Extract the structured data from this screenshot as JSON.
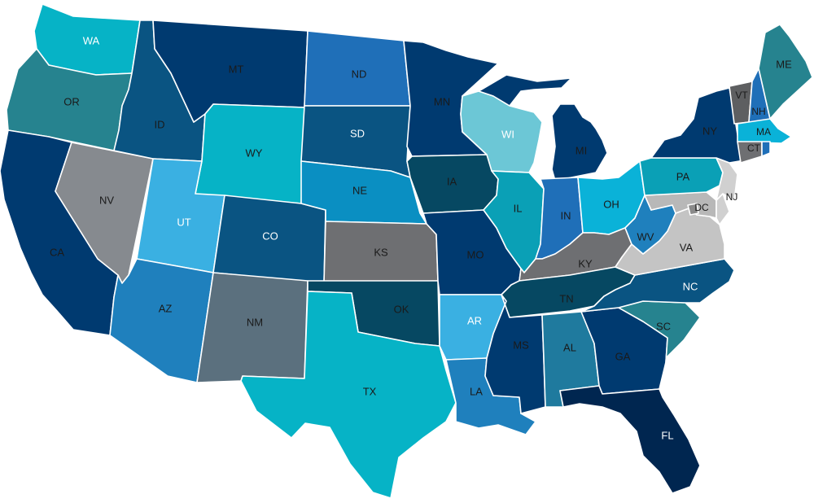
{
  "map": {
    "states": {
      "WA": {
        "label": "WA",
        "color": "#06b3c6",
        "text_color": "#ffffff"
      },
      "OR": {
        "label": "OR",
        "color": "#26838f",
        "text_color": "#1a1a1a"
      },
      "CA": {
        "label": "CA",
        "color": "#003a70",
        "text_color": "#1a1a1a"
      },
      "ID": {
        "label": "ID",
        "color": "#0a5482",
        "text_color": "#1a1a1a"
      },
      "NV": {
        "label": "NV",
        "color": "#868a8f",
        "text_color": "#1a1a1a"
      },
      "MT": {
        "label": "MT",
        "color": "#003a70",
        "text_color": "#1a1a1a"
      },
      "WY": {
        "label": "WY",
        "color": "#06b3c6",
        "text_color": "#1a1a1a"
      },
      "UT": {
        "label": "UT",
        "color": "#3ab0e2",
        "text_color": "#ffffff"
      },
      "AZ": {
        "label": "AZ",
        "color": "#1f80bd",
        "text_color": "#1a1a1a"
      },
      "CO": {
        "label": "CO",
        "color": "#0a5482",
        "text_color": "#ffffff"
      },
      "NM": {
        "label": "NM",
        "color": "#5b707e",
        "text_color": "#1a1a1a"
      },
      "ND": {
        "label": "ND",
        "color": "#1f6fb8",
        "text_color": "#1a1a1a"
      },
      "SD": {
        "label": "SD",
        "color": "#0a5482",
        "text_color": "#ffffff"
      },
      "NE": {
        "label": "NE",
        "color": "#0a8fc2",
        "text_color": "#1a1a1a"
      },
      "KS": {
        "label": "KS",
        "color": "#6e6f72",
        "text_color": "#1a1a1a"
      },
      "OK": {
        "label": "OK",
        "color": "#064862",
        "text_color": "#1a1a1a"
      },
      "TX": {
        "label": "TX",
        "color": "#06b3c6",
        "text_color": "#1a1a1a"
      },
      "MN": {
        "label": "MN",
        "color": "#003a70",
        "text_color": "#1a1a1a"
      },
      "IA": {
        "label": "IA",
        "color": "#064862",
        "text_color": "#1a1a1a"
      },
      "MO": {
        "label": "MO",
        "color": "#003a70",
        "text_color": "#1a1a1a"
      },
      "AR": {
        "label": "AR",
        "color": "#3ab0e2",
        "text_color": "#ffffff"
      },
      "LA": {
        "label": "LA",
        "color": "#1f80bd",
        "text_color": "#1a1a1a"
      },
      "WI": {
        "label": "WI",
        "color": "#6cc7d6",
        "text_color": "#ffffff"
      },
      "IL": {
        "label": "IL",
        "color": "#0aa0b6",
        "text_color": "#1a1a1a"
      },
      "MI": {
        "label": "MI",
        "color": "#003a70",
        "text_color": "#1a1a1a"
      },
      "IN": {
        "label": "IN",
        "color": "#1f6fb8",
        "text_color": "#1a1a1a"
      },
      "OH": {
        "label": "OH",
        "color": "#0ab2d8",
        "text_color": "#1a1a1a"
      },
      "KY": {
        "label": "KY",
        "color": "#6e6f72",
        "text_color": "#1a1a1a"
      },
      "TN": {
        "label": "TN",
        "color": "#064862",
        "text_color": "#1a1a1a"
      },
      "MS": {
        "label": "MS",
        "color": "#003a70",
        "text_color": "#1a1a1a"
      },
      "AL": {
        "label": "AL",
        "color": "#1f7a9e",
        "text_color": "#1a1a1a"
      },
      "GA": {
        "label": "GA",
        "color": "#003a70",
        "text_color": "#1a1a1a"
      },
      "FL": {
        "label": "FL",
        "color": "#002650",
        "text_color": "#ffffff"
      },
      "SC": {
        "label": "SC",
        "color": "#26838f",
        "text_color": "#1a1a1a"
      },
      "NC": {
        "label": "NC",
        "color": "#0a5482",
        "text_color": "#ffffff"
      },
      "VA": {
        "label": "VA",
        "color": "#c4c4c4",
        "text_color": "#1a1a1a"
      },
      "WV": {
        "label": "WV",
        "color": "#1f80bd",
        "text_color": "#1a1a1a"
      },
      "DC": {
        "label": "DC",
        "color": "#8a8a8a",
        "text_color": "#1a1a1a"
      },
      "MD": {
        "label": "",
        "color": "#b8b8b8",
        "text_color": "#1a1a1a"
      },
      "DE": {
        "label": "",
        "color": "#d0d0d0",
        "text_color": "#1a1a1a"
      },
      "PA": {
        "label": "PA",
        "color": "#0aa0b6",
        "text_color": "#1a1a1a"
      },
      "NJ": {
        "label": "NJ",
        "color": "#d0d0d0",
        "text_color": "#1a1a1a"
      },
      "NY": {
        "label": "NY",
        "color": "#003a70",
        "text_color": "#1a1a1a"
      },
      "CT": {
        "label": "CT",
        "color": "#6e6f72",
        "text_color": "#1a1a1a"
      },
      "RI": {
        "label": "",
        "color": "#1f6fb8",
        "text_color": "#1a1a1a"
      },
      "MA": {
        "label": "MA",
        "color": "#0ab2d8",
        "text_color": "#1a1a1a"
      },
      "VT": {
        "label": "VT",
        "color": "#5e5f61",
        "text_color": "#1a1a1a"
      },
      "NH": {
        "label": "NH",
        "color": "#1f6fb8",
        "text_color": "#1a1a1a"
      },
      "ME": {
        "label": "ME",
        "color": "#26838f",
        "text_color": "#1a1a1a"
      }
    }
  }
}
